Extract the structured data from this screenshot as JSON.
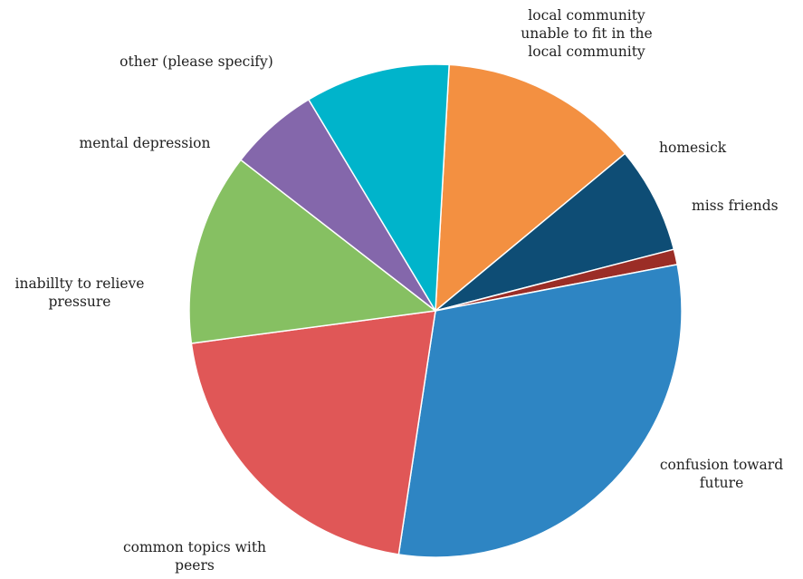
{
  "chart_data": {
    "type": "pie",
    "title": "",
    "start_angle_deg": 3.2,
    "direction": "clockwise",
    "slices": [
      {
        "label": [
          "local community",
          "unable to fit in the",
          "local community"
        ],
        "value": 13.1,
        "color": "#f39041"
      },
      {
        "label": [
          "homesick"
        ],
        "value": 7.0,
        "color": "#0e4d75"
      },
      {
        "label": [
          "miss friends"
        ],
        "value": 1.0,
        "color": "#9b2d26"
      },
      {
        "label": [
          "confusion toward",
          "future"
        ],
        "value": 30.4,
        "color": "#2e85c3"
      },
      {
        "label": [
          "common topics with",
          "peers"
        ],
        "value": 20.5,
        "color": "#e05757"
      },
      {
        "label": [
          "inabillty to relieve",
          "pressure"
        ],
        "value": 12.6,
        "color": "#86c062"
      },
      {
        "label": [
          "mental depression"
        ],
        "value": 5.9,
        "color": "#8467ab"
      },
      {
        "label": [
          "other (please specify)"
        ],
        "value": 9.5,
        "color": "#00b4cb"
      }
    ],
    "legend": "none (labels beside slices)"
  }
}
